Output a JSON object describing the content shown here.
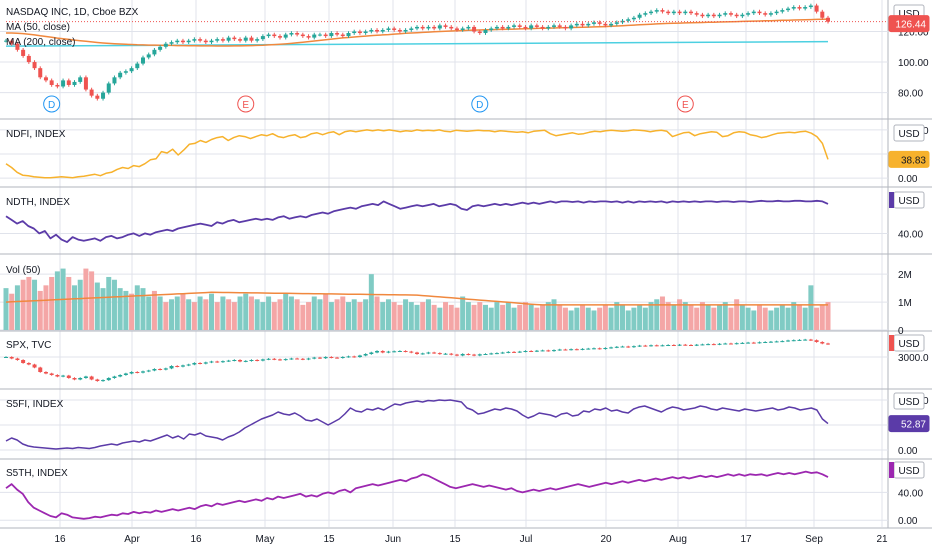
{
  "header": {
    "symbol_title": "NASDAQ INC, 1D, Cboe BZX",
    "ma50_label": "MA (50, close)",
    "ma200_label": "MA (200, close)"
  },
  "currency": "USD",
  "colors": {
    "up": "#26a69a",
    "down": "#ef5350",
    "vol_up": "#80cbc4",
    "vol_down": "#f4a6a6",
    "ma50": "#f0883e",
    "ma200": "#4dd0e1",
    "ndfi": "#f7b22d",
    "indigo": "#5b3ba8",
    "purple": "#9c27b0",
    "grid": "#e0e3eb",
    "last_price": "#ef5350"
  },
  "x_axis": [
    "16",
    "Apr",
    "16",
    "May",
    "15",
    "Jun",
    "15",
    "Jul",
    "20",
    "Aug",
    "17",
    "Sep",
    "21"
  ],
  "chart_data": [
    {
      "name": "ndaq",
      "type": "candlestick",
      "title": "NASDAQ INC, 1D, Cboe BZX",
      "y_ticks": [
        "80.00",
        "100.00",
        "120.00"
      ],
      "ylim": [
        66,
        138
      ],
      "last_value": "126.44",
      "event_markers": [
        {
          "label": "D",
          "index": 8,
          "color": "#2196f3"
        },
        {
          "label": "E",
          "index": 42,
          "color": "#ef5350"
        },
        {
          "label": "D",
          "index": 83,
          "color": "#2196f3"
        },
        {
          "label": "E",
          "index": 119,
          "color": "#ef5350"
        }
      ],
      "close": [
        114,
        112,
        108,
        104,
        100,
        96,
        90,
        88,
        85,
        84,
        88,
        85,
        87,
        90,
        82,
        78,
        76,
        80,
        86,
        90,
        93,
        94,
        96,
        99,
        103,
        105,
        108,
        110,
        112,
        113,
        114,
        113,
        114,
        115,
        114,
        113,
        114,
        115,
        114,
        116,
        115,
        114,
        116,
        114,
        115,
        117,
        118,
        117,
        116,
        118,
        119,
        118,
        117,
        116,
        118,
        118,
        117,
        119,
        118,
        117,
        119,
        120,
        119,
        120,
        121,
        120,
        121,
        122,
        121,
        120,
        121,
        122,
        123,
        122,
        123,
        122,
        124,
        123,
        122,
        121,
        122,
        123,
        120,
        119,
        121,
        122,
        123,
        122,
        123,
        124,
        123,
        122,
        124,
        123,
        122,
        123,
        124,
        123,
        122,
        124,
        125,
        124,
        125,
        126,
        125,
        124,
        125,
        126,
        127,
        128,
        129,
        131,
        132,
        133,
        134,
        133,
        132,
        133,
        132,
        133,
        132,
        131,
        130,
        131,
        130,
        131,
        132,
        131,
        130,
        131,
        132,
        133,
        132,
        131,
        132,
        133,
        134,
        135,
        136,
        135,
        136,
        137,
        133,
        129,
        126.44
      ],
      "ma50": [
        119,
        119,
        118.8,
        118.6,
        118.2,
        117.8,
        117.2,
        116.7,
        116.2,
        115.7,
        115.3,
        114.8,
        114.4,
        114,
        113.6,
        113.2,
        112.8,
        112.5,
        112.2,
        112,
        111.8,
        111.6,
        111.5,
        111.3,
        111.2,
        111.1,
        111.1,
        111,
        110.9,
        110.9,
        110.8,
        110.8,
        110.7,
        110.7,
        110.6,
        110.6,
        110.6,
        110.5,
        110.5,
        110.5,
        110.6,
        110.6,
        110.7,
        110.8,
        110.9,
        111,
        111.2,
        111.4,
        111.6,
        111.9,
        112.2,
        112.6,
        113,
        113.4,
        113.8,
        114.2,
        114.6,
        115,
        115.4,
        115.8,
        116.1,
        116.4,
        116.7,
        117,
        117.3,
        117.5,
        117.8,
        118,
        118.3,
        118.5,
        118.8,
        119,
        119.2,
        119.4,
        119.6,
        119.8,
        120,
        120.2,
        120.3,
        120.5,
        120.6,
        120.8,
        120.9,
        121,
        121.1,
        121.2,
        121.3,
        121.4,
        121.5,
        121.6,
        121.7,
        121.8,
        121.9,
        122,
        122.1,
        122.2,
        122.3,
        122.4,
        122.5,
        122.6,
        122.7,
        122.8,
        122.9,
        123,
        123.1,
        123.2,
        123.4,
        123.6,
        123.8,
        124,
        124.2,
        124.4,
        124.6,
        124.8,
        125,
        125.2,
        125.3,
        125.4,
        125.5,
        125.6,
        125.7,
        125.8,
        125.9,
        126,
        126.1,
        126.2,
        126.3,
        126.4,
        126.5,
        126.6,
        126.7,
        126.8,
        126.9,
        127,
        127.1,
        127.2,
        127.3,
        127.4,
        127.5,
        127.6,
        127.7,
        127.8,
        127.9,
        128,
        128.1
      ],
      "ma200_start": 110.4,
      "ma200_end": 113.4
    },
    {
      "name": "ndfi",
      "type": "line",
      "title": "NDFI, INDEX",
      "y_ticks": [
        "0.00",
        "50.00",
        "100.00"
      ],
      "ylim": [
        -8,
        108
      ],
      "last_value": "38.83",
      "values": [
        30,
        22,
        12,
        6,
        5,
        3,
        2,
        1,
        1,
        2,
        3,
        2,
        1,
        3,
        4,
        6,
        8,
        5,
        10,
        12,
        18,
        22,
        20,
        26,
        24,
        30,
        38,
        40,
        55,
        52,
        60,
        48,
        58,
        70,
        72,
        78,
        74,
        80,
        84,
        86,
        78,
        84,
        88,
        86,
        82,
        86,
        90,
        88,
        92,
        86,
        84,
        88,
        90,
        84,
        86,
        92,
        94,
        90,
        94,
        96,
        90,
        96,
        98,
        96,
        98,
        100,
        98,
        100,
        98,
        100,
        98,
        96,
        98,
        97,
        100,
        98,
        99,
        98,
        100,
        97,
        96,
        99,
        98,
        97,
        98,
        99,
        98,
        98,
        96,
        98,
        97,
        96,
        95,
        96,
        94,
        97,
        98,
        99,
        92,
        88,
        90,
        92,
        94,
        91,
        92,
        95,
        97,
        96,
        98,
        99,
        98,
        97,
        98,
        100,
        99,
        98,
        96,
        98,
        99,
        97,
        86,
        90,
        94,
        95,
        88,
        92,
        94,
        96,
        95,
        86,
        88,
        94,
        96,
        95,
        90,
        88,
        84,
        86,
        90,
        93,
        94,
        95,
        94,
        96,
        97,
        93,
        86,
        72,
        38.83
      ]
    },
    {
      "name": "ndth",
      "type": "line",
      "title": "NDTH, INDEX",
      "y_ticks": [
        "40.00"
      ],
      "ylim": [
        18,
        104
      ],
      "values": [
        68,
        62,
        56,
        60,
        52,
        48,
        40,
        44,
        32,
        38,
        30,
        26,
        34,
        30,
        28,
        30,
        32,
        28,
        34,
        36,
        32,
        34,
        38,
        40,
        36,
        40,
        38,
        42,
        44,
        46,
        44,
        48,
        50,
        52,
        54,
        56,
        54,
        52,
        58,
        56,
        60,
        62,
        58,
        60,
        62,
        64,
        62,
        64,
        62,
        66,
        68,
        64,
        66,
        68,
        66,
        70,
        72,
        74,
        72,
        76,
        78,
        80,
        82,
        80,
        84,
        86,
        88,
        86,
        92,
        88,
        84,
        80,
        82,
        84,
        86,
        84,
        86,
        88,
        84,
        86,
        88,
        86,
        80,
        78,
        84,
        86,
        84,
        86,
        88,
        86,
        88,
        86,
        88,
        90,
        88,
        90,
        88,
        90,
        92,
        90,
        92,
        92,
        91,
        92,
        90,
        92,
        91,
        92,
        92,
        91,
        92,
        90,
        92,
        90,
        92,
        91,
        92,
        91,
        92,
        90,
        92,
        91,
        92,
        91,
        92,
        91,
        92,
        92,
        91,
        92,
        92,
        91,
        92,
        92,
        91,
        92,
        93,
        92,
        92,
        93,
        92,
        92,
        93,
        93,
        92,
        92,
        93,
        92,
        88
      ]
    },
    {
      "name": "vol",
      "type": "bar",
      "title": "Vol (50)",
      "y_ticks": [
        "0",
        "1M",
        "2M"
      ],
      "ylim": [
        0,
        2.4
      ],
      "values": [
        1.5,
        1.3,
        1.6,
        1.8,
        1.9,
        1.8,
        1.4,
        1.6,
        1.9,
        2.1,
        2.2,
        1.9,
        1.6,
        1.8,
        2.2,
        2.1,
        1.7,
        1.5,
        1.9,
        1.8,
        1.5,
        1.4,
        1.3,
        1.6,
        1.5,
        1.2,
        1.4,
        1.2,
        1.0,
        1.1,
        1.2,
        1.3,
        1.1,
        1.0,
        1.2,
        1.1,
        1.3,
        1.0,
        1.2,
        1.1,
        1.0,
        1.2,
        1.3,
        1.2,
        1.1,
        1.0,
        1.2,
        1.0,
        1.1,
        1.3,
        1.2,
        1.1,
        0.9,
        1.0,
        1.2,
        1.1,
        1.3,
        1.0,
        1.1,
        1.2,
        1.0,
        1.1,
        1.0,
        1.1,
        2.0,
        1.2,
        1.0,
        1.1,
        1.0,
        0.9,
        1.1,
        1.0,
        0.9,
        1.0,
        1.1,
        0.9,
        0.8,
        1.0,
        0.9,
        0.8,
        1.2,
        1.0,
        0.9,
        1.0,
        0.9,
        0.8,
        1.0,
        0.9,
        1.0,
        0.8,
        0.9,
        1.0,
        0.9,
        0.8,
        0.9,
        1.0,
        1.1,
        0.9,
        0.8,
        0.7,
        0.8,
        0.9,
        0.8,
        0.7,
        0.8,
        0.9,
        0.8,
        1.0,
        0.9,
        0.7,
        0.8,
        0.9,
        0.8,
        1.0,
        1.1,
        1.2,
        1.0,
        0.9,
        1.1,
        1.0,
        0.9,
        0.8,
        1.0,
        0.9,
        0.8,
        0.9,
        1.0,
        0.8,
        1.1,
        0.9,
        0.8,
        0.7,
        0.9,
        0.8,
        0.7,
        0.8,
        0.9,
        0.8,
        1.0,
        0.9,
        0.8,
        1.6,
        0.8,
        0.9,
        1.0
      ],
      "up": [
        1,
        0,
        1,
        0,
        0,
        1,
        0,
        0,
        0,
        1,
        1,
        0,
        1,
        1,
        0,
        0,
        1,
        1,
        1,
        1,
        1,
        1,
        0,
        1,
        1,
        1,
        0,
        1,
        0,
        1,
        1,
        0,
        1,
        0,
        1,
        0,
        1,
        0,
        1,
        0,
        0,
        1,
        1,
        0,
        1,
        1,
        1,
        0,
        0,
        1,
        1,
        0,
        0,
        0,
        1,
        1,
        0,
        1,
        0,
        0,
        1,
        1,
        0,
        1,
        1,
        0,
        1,
        1,
        0,
        0,
        1,
        1,
        1,
        0,
        1,
        0,
        1,
        0,
        0,
        0,
        1,
        1,
        0,
        0,
        1,
        1,
        1,
        0,
        1,
        1,
        0,
        0,
        1,
        0,
        0,
        1,
        1,
        0,
        0,
        1,
        1,
        0,
        1,
        1,
        0,
        0,
        1,
        1,
        1,
        1,
        1,
        1,
        1,
        1,
        1,
        0,
        0,
        1,
        0,
        1,
        0,
        0,
        0,
        1,
        0,
        1,
        1,
        0,
        0,
        1,
        1,
        1,
        0,
        0,
        1,
        1,
        1,
        1,
        1,
        0,
        1,
        1,
        0,
        0,
        0
      ],
      "ma_start": 1.0,
      "ma_peak": 1.35,
      "ma_end": 0.9
    },
    {
      "name": "spx",
      "type": "candlestick",
      "title": "SPX, TVC",
      "y_ticks": [
        "3000.0"
      ],
      "ylim": [
        2100,
        3700
      ],
      "close": [
        3000,
        2950,
        2900,
        2800,
        2750,
        2650,
        2500,
        2450,
        2400,
        2350,
        2380,
        2300,
        2250,
        2300,
        2350,
        2250,
        2200,
        2230,
        2300,
        2350,
        2400,
        2450,
        2500,
        2480,
        2520,
        2550,
        2600,
        2580,
        2620,
        2700,
        2680,
        2720,
        2750,
        2800,
        2780,
        2820,
        2850,
        2830,
        2860,
        2880,
        2900,
        2850,
        2870,
        2900,
        2880,
        2920,
        2940,
        2920,
        2900,
        2930,
        2950,
        2940,
        2920,
        2950,
        2980,
        2960,
        3000,
        2980,
        2970,
        3000,
        3020,
        3000,
        3050,
        3100,
        3150,
        3200,
        3150,
        3180,
        3190,
        3200,
        3180,
        3150,
        3100,
        3120,
        3150,
        3130,
        3100,
        3110,
        3080,
        3050,
        3100,
        3080,
        3050,
        3090,
        3100,
        3120,
        3130,
        3150,
        3170,
        3160,
        3180,
        3200,
        3190,
        3210,
        3220,
        3200,
        3230,
        3250,
        3240,
        3260,
        3250,
        3270,
        3280,
        3290,
        3270,
        3300,
        3320,
        3340,
        3350,
        3330,
        3360,
        3380,
        3370,
        3390,
        3380,
        3390,
        3400,
        3390,
        3410,
        3400,
        3390,
        3410,
        3420,
        3430,
        3420,
        3440,
        3450,
        3440,
        3460,
        3470,
        3480,
        3470,
        3490,
        3500,
        3510,
        3520,
        3530,
        3550,
        3560,
        3570,
        3580,
        3560,
        3500,
        3450,
        3430
      ]
    },
    {
      "name": "s5fi",
      "type": "line",
      "title": "S5FI, INDEX",
      "y_ticks": [
        "0.00",
        "50.00",
        "100.00"
      ],
      "ylim": [
        -8,
        108
      ],
      "last_value": "52.87",
      "values": [
        18,
        24,
        20,
        12,
        8,
        6,
        5,
        4,
        3,
        2,
        3,
        4,
        3,
        5,
        4,
        3,
        5,
        8,
        10,
        12,
        10,
        14,
        16,
        18,
        16,
        20,
        18,
        22,
        26,
        30,
        24,
        28,
        22,
        32,
        30,
        34,
        28,
        26,
        24,
        20,
        26,
        30,
        36,
        44,
        50,
        56,
        62,
        66,
        70,
        76,
        72,
        70,
        74,
        68,
        60,
        58,
        62,
        56,
        50,
        56,
        62,
        72,
        84,
        78,
        76,
        82,
        80,
        84,
        80,
        86,
        92,
        90,
        94,
        96,
        98,
        96,
        99,
        98,
        100,
        99,
        100,
        98,
        96,
        84,
        80,
        72,
        74,
        78,
        82,
        80,
        84,
        82,
        78,
        70,
        64,
        68,
        74,
        72,
        70,
        66,
        72,
        74,
        68,
        70,
        78,
        76,
        82,
        80,
        84,
        78,
        80,
        76,
        74,
        82,
        86,
        88,
        84,
        80,
        76,
        82,
        86,
        84,
        80,
        82,
        84,
        88,
        86,
        82,
        80,
        84,
        82,
        80,
        78,
        82,
        80,
        78,
        80,
        82,
        84,
        80,
        82,
        86,
        84,
        80,
        82,
        84,
        80,
        62,
        52.87
      ]
    },
    {
      "name": "s5th",
      "type": "line",
      "title": "S5TH, INDEX",
      "y_ticks": [
        "0.00",
        "40.00"
      ],
      "ylim": [
        -4,
        78
      ],
      "values": [
        46,
        52,
        44,
        38,
        26,
        18,
        14,
        10,
        6,
        4,
        10,
        8,
        4,
        3,
        2,
        3,
        5,
        4,
        6,
        8,
        7,
        10,
        9,
        12,
        10,
        12,
        11,
        14,
        12,
        14,
        16,
        14,
        16,
        18,
        16,
        20,
        22,
        20,
        24,
        22,
        24,
        26,
        28,
        26,
        28,
        30,
        28,
        32,
        30,
        34,
        32,
        34,
        36,
        38,
        34,
        36,
        34,
        38,
        40,
        38,
        42,
        44,
        40,
        46,
        48,
        50,
        52,
        50,
        52,
        54,
        56,
        58,
        56,
        60,
        62,
        66,
        64,
        60,
        56,
        52,
        48,
        46,
        48,
        50,
        52,
        50,
        48,
        50,
        48,
        46,
        44,
        46,
        42,
        40,
        42,
        44,
        42,
        44,
        46,
        44,
        46,
        48,
        50,
        52,
        50,
        48,
        50,
        52,
        54,
        52,
        54,
        56,
        54,
        56,
        58,
        56,
        58,
        60,
        58,
        60,
        62,
        60,
        62,
        60,
        62,
        64,
        62,
        64,
        62,
        64,
        66,
        64,
        66,
        64,
        66,
        65,
        66,
        64,
        66,
        68,
        66,
        68,
        66,
        68,
        70,
        68,
        69,
        66,
        62
      ]
    }
  ]
}
